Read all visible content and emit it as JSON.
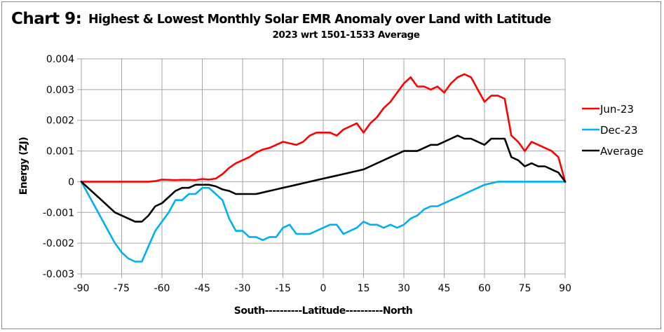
{
  "chart_label": "Chart 9:",
  "chart_data": {
    "type": "line",
    "title": "Highest & Lowest Monthly Solar EMR Anomaly over Land with Latitude",
    "subtitle": "2023 wrt 1501-1533 Average",
    "xlabel": "South----------Latitude----------North",
    "ylabel": "Energy (ZJ)",
    "xlim": [
      -90,
      90
    ],
    "ylim": [
      -0.003,
      0.004
    ],
    "xticks": [
      -90,
      -75,
      -60,
      -45,
      -30,
      -15,
      0,
      15,
      30,
      45,
      60,
      75,
      90
    ],
    "xtick_labels": [
      "-90",
      "-75",
      "-60",
      "-45",
      "-30",
      "-15",
      "0",
      "15",
      "30",
      "45",
      "60",
      "75",
      "90"
    ],
    "yticks": [
      0.004,
      0.003,
      0.002,
      0.001,
      0,
      -0.001,
      -0.002,
      -0.003
    ],
    "ytick_labels": [
      "0.004",
      "0.003",
      "0.002",
      "0.001",
      "0",
      "-0.001",
      "-0.002",
      "-0.003"
    ],
    "grid": true,
    "legend_position": "right",
    "x": [
      -90,
      -87.5,
      -85,
      -82.5,
      -80,
      -77.5,
      -75,
      -72.5,
      -70,
      -67.5,
      -65,
      -62.5,
      -60,
      -57.5,
      -55,
      -52.5,
      -50,
      -47.5,
      -45,
      -42.5,
      -40,
      -37.5,
      -35,
      -32.5,
      -30,
      -27.5,
      -25,
      -22.5,
      -20,
      -17.5,
      -15,
      -12.5,
      -10,
      -7.5,
      -5,
      -2.5,
      0,
      2.5,
      5,
      7.5,
      10,
      12.5,
      15,
      17.5,
      20,
      22.5,
      25,
      27.5,
      30,
      32.5,
      35,
      37.5,
      40,
      42.5,
      45,
      47.5,
      50,
      52.5,
      55,
      57.5,
      60,
      62.5,
      65,
      67.5,
      70,
      72.5,
      75,
      77.5,
      80,
      82.5,
      85,
      87.5,
      90
    ],
    "series": [
      {
        "name": "Jun-23",
        "color": "#ff0000",
        "values": [
          0,
          0,
          0,
          0,
          0,
          0,
          0,
          0,
          0,
          0,
          0,
          2e-05,
          7e-05,
          6e-05,
          5e-05,
          6e-05,
          6e-05,
          5e-05,
          9e-05,
          7e-05,
          0.0001,
          0.00025,
          0.00045,
          0.0006,
          0.0007,
          0.0008,
          0.00095,
          0.00105,
          0.0011,
          0.0012,
          0.0013,
          0.00125,
          0.0012,
          0.0013,
          0.0015,
          0.0016,
          0.0016,
          0.0016,
          0.0015,
          0.0017,
          0.0018,
          0.0019,
          0.0016,
          0.0019,
          0.0021,
          0.0024,
          0.0026,
          0.0029,
          0.0032,
          0.0034,
          0.0031,
          0.0031,
          0.003,
          0.0031,
          0.0029,
          0.0032,
          0.0034,
          0.0035,
          0.0034,
          0.003,
          0.0026,
          0.0028,
          0.0028,
          0.0027,
          0.0015,
          0.0013,
          0.001,
          0.0013,
          0.0012,
          0.0011,
          0.001,
          0.0008,
          0.0
        ]
      },
      {
        "name": "Dec-23",
        "color": "#00b0f0",
        "values": [
          0,
          -0.0004,
          -0.0008,
          -0.0012,
          -0.0016,
          -0.002,
          -0.0023,
          -0.0025,
          -0.0026,
          -0.0026,
          -0.0021,
          -0.0016,
          -0.0013,
          -0.001,
          -0.0006,
          -0.0006,
          -0.0004,
          -0.0004,
          -0.0002,
          -0.0002,
          -0.0004,
          -0.0006,
          -0.0012,
          -0.0016,
          -0.0016,
          -0.0018,
          -0.0018,
          -0.0019,
          -0.0018,
          -0.0018,
          -0.0015,
          -0.0014,
          -0.0017,
          -0.0017,
          -0.0017,
          -0.0016,
          -0.0015,
          -0.0014,
          -0.0014,
          -0.0017,
          -0.0016,
          -0.0015,
          -0.0013,
          -0.0014,
          -0.0014,
          -0.0015,
          -0.0014,
          -0.0015,
          -0.0014,
          -0.0012,
          -0.0011,
          -0.0009,
          -0.0008,
          -0.0008,
          -0.0007,
          -0.0006,
          -0.0005,
          -0.0004,
          -0.0003,
          -0.0002,
          -0.0001,
          -5e-05,
          0,
          0,
          0,
          0,
          0,
          0,
          0,
          0,
          0,
          0,
          0
        ]
      },
      {
        "name": "Average",
        "color": "#000000",
        "values": [
          0,
          -0.0002,
          -0.0004,
          -0.0006,
          -0.0008,
          -0.001,
          -0.0011,
          -0.0012,
          -0.0013,
          -0.0013,
          -0.0011,
          -0.0008,
          -0.0007,
          -0.0005,
          -0.0003,
          -0.0002,
          -0.0002,
          -0.0001,
          -0.0001,
          -0.0001,
          -0.00015,
          -0.00025,
          -0.0003,
          -0.0004,
          -0.0004,
          -0.0004,
          -0.0004,
          -0.00035,
          -0.0003,
          -0.00025,
          -0.0002,
          -0.00015,
          -0.0001,
          -5e-05,
          0,
          5e-05,
          0.0001,
          0.00015,
          0.0002,
          0.00025,
          0.0003,
          0.00035,
          0.0004,
          0.0005,
          0.0006,
          0.0007,
          0.0008,
          0.0009,
          0.001,
          0.001,
          0.001,
          0.0011,
          0.0012,
          0.0012,
          0.0013,
          0.0014,
          0.0015,
          0.0014,
          0.0014,
          0.0013,
          0.0012,
          0.0014,
          0.0014,
          0.0014,
          0.0008,
          0.0007,
          0.0005,
          0.0006,
          0.0005,
          0.0005,
          0.0004,
          0.0003,
          0.0
        ]
      }
    ]
  }
}
